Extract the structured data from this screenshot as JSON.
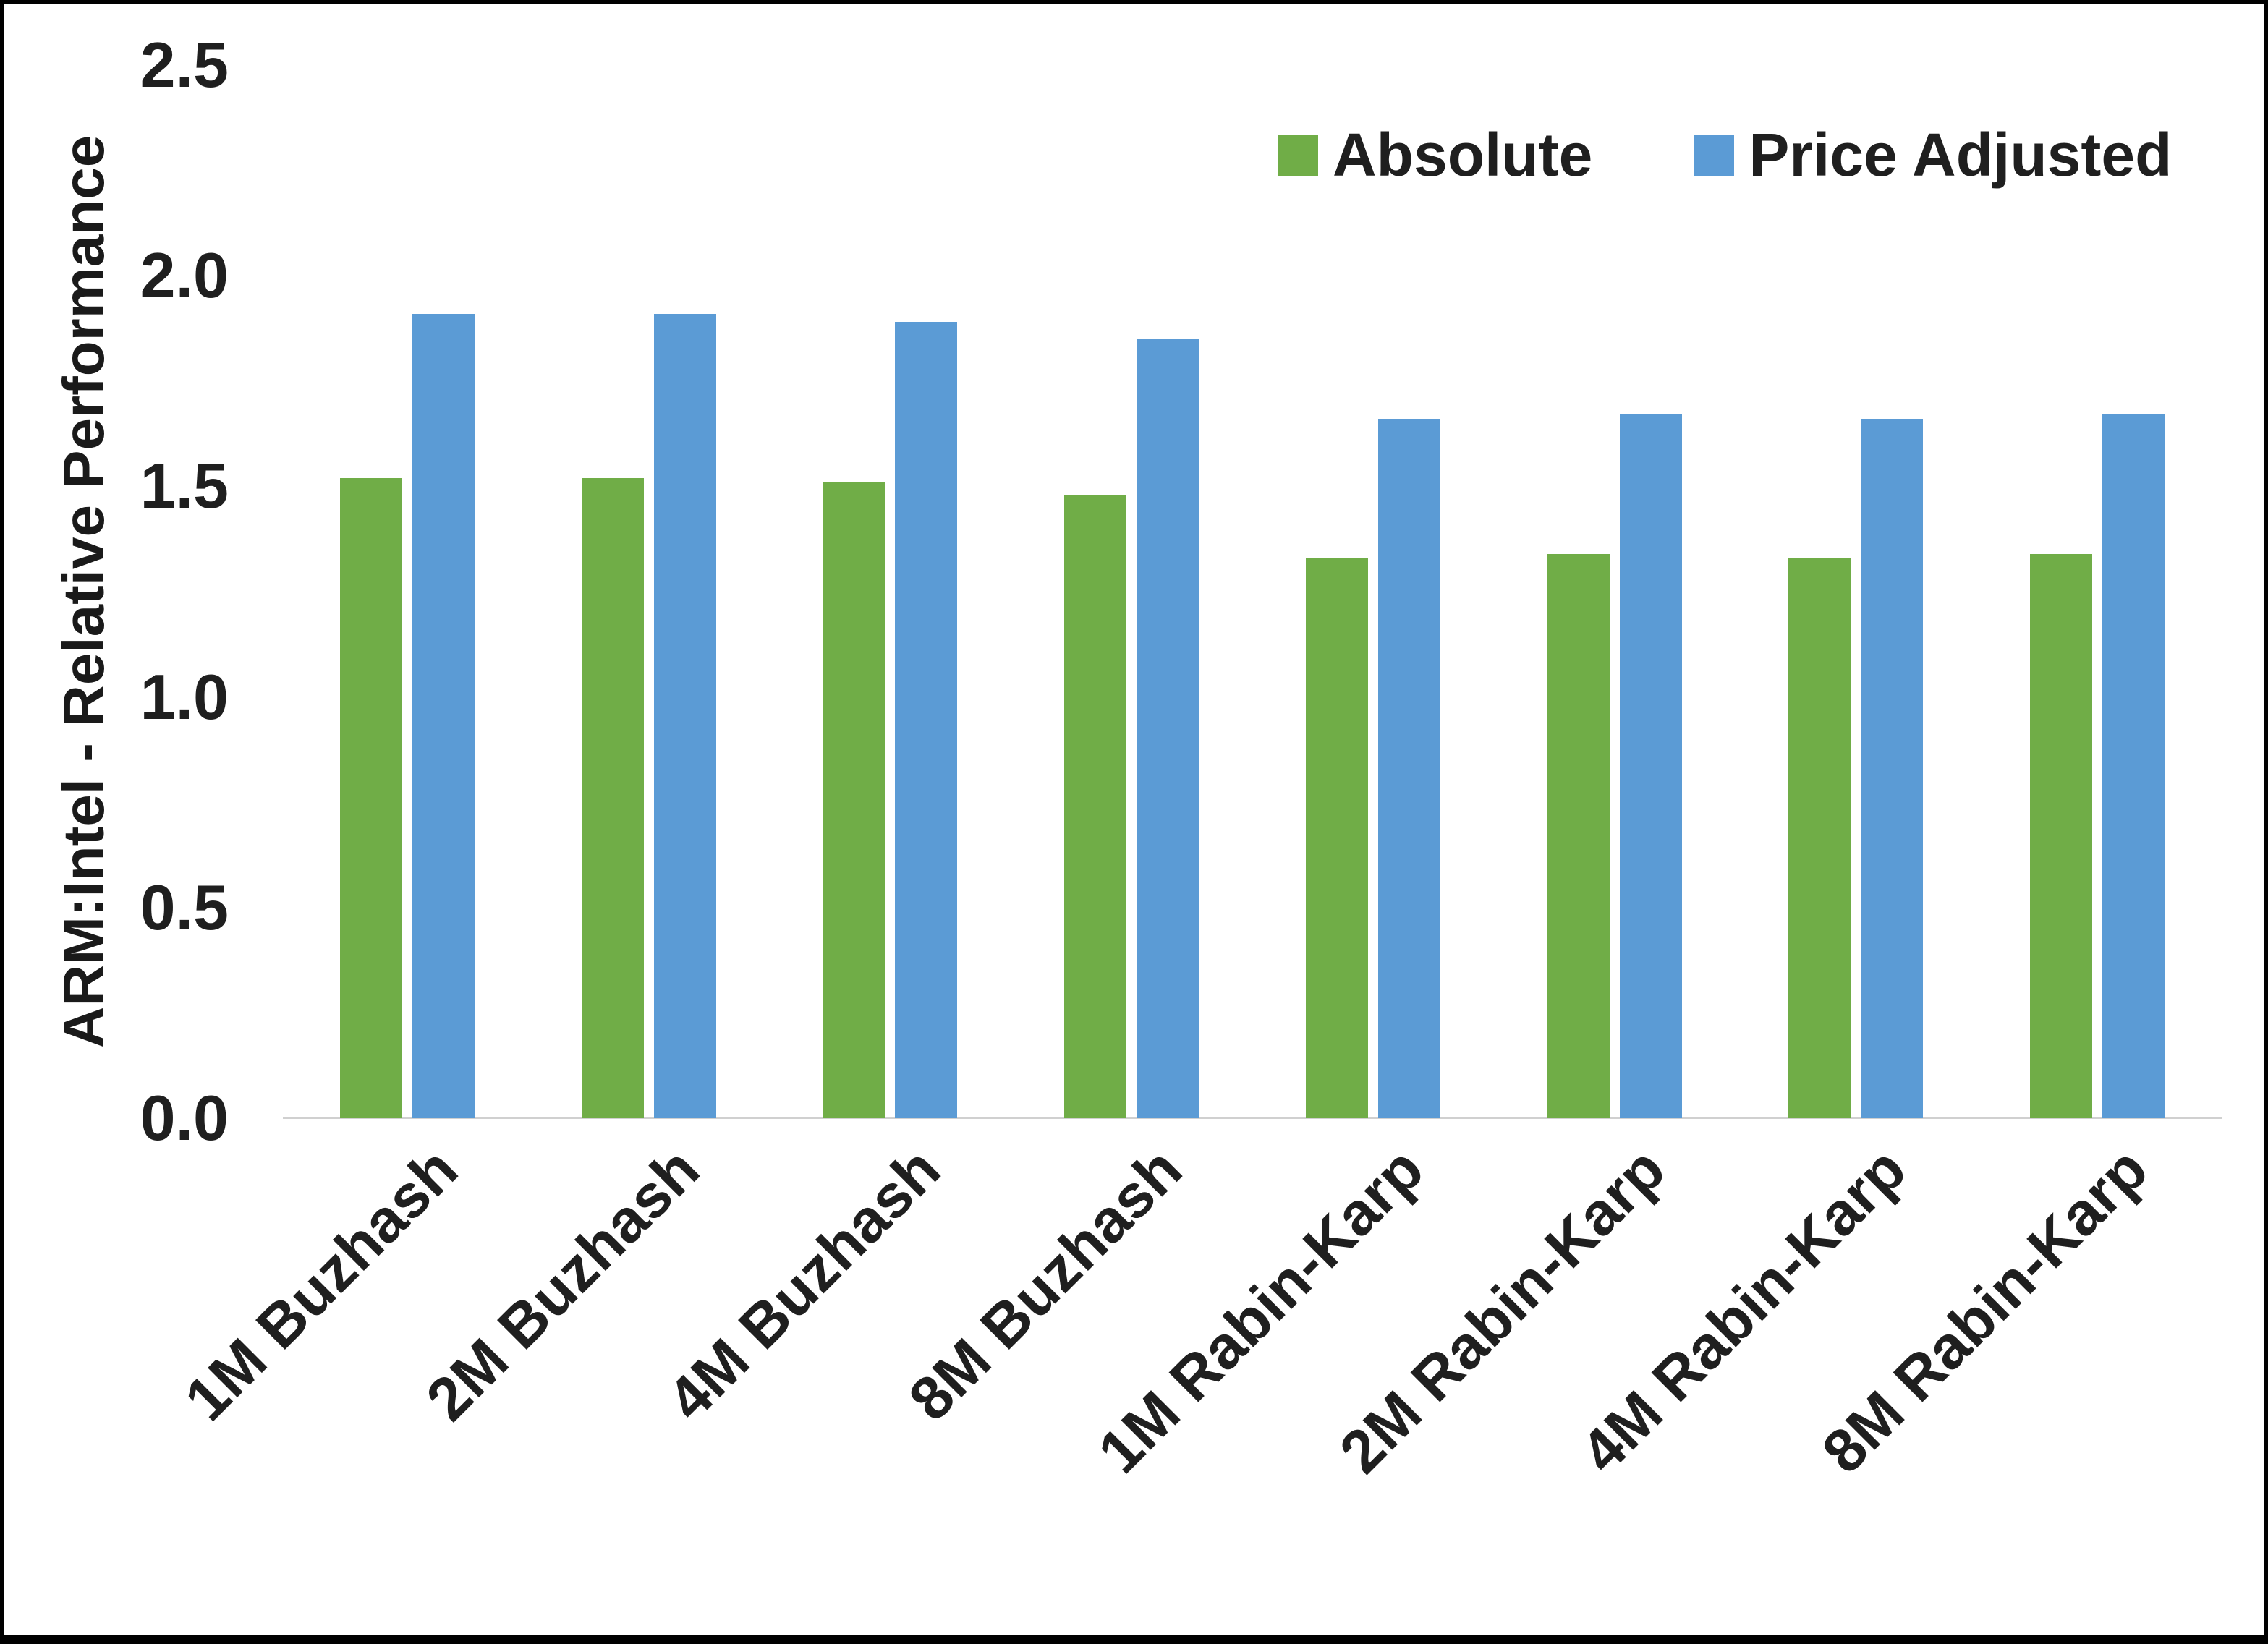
{
  "page": {
    "background": "#ffffff",
    "border_color": "#000000",
    "axis_line_color": "#d0d0d0",
    "text_color": "#1f1f1f"
  },
  "chart_data": {
    "type": "bar",
    "title": "",
    "xlabel": "",
    "ylabel": "ARM:Intel - Relative Performance",
    "ylim": [
      0,
      2.5
    ],
    "ytick_step": 0.5,
    "yticks": [
      "2.5",
      "2.0",
      "1.5",
      "1.0",
      "0.5",
      "0.0"
    ],
    "grid": false,
    "legend_position": "top-right",
    "categories": [
      "1M Buzhash",
      "2M Buzhash",
      "4M Buzhash",
      "8M Buzhash",
      "1M Rabin-Karp",
      "2M Rabin-Karp",
      "4M Rabin-Karp",
      "8M Rabin-Karp"
    ],
    "series": [
      {
        "name": "Absolute",
        "color": "#70AD47",
        "values": [
          1.52,
          1.52,
          1.51,
          1.48,
          1.33,
          1.34,
          1.33,
          1.34
        ]
      },
      {
        "name": "Price Adjusted",
        "color": "#5B9BD5",
        "values": [
          1.91,
          1.91,
          1.89,
          1.85,
          1.66,
          1.67,
          1.66,
          1.67
        ]
      }
    ]
  }
}
